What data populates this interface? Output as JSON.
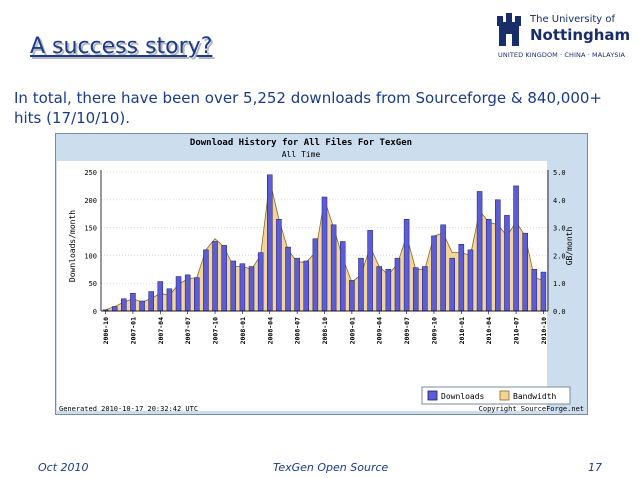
{
  "slide": {
    "title": "A success story?",
    "intro": "In total, there have been over 5,252 downloads from Sourceforge & 840,000+ hits (17/10/10)."
  },
  "logo": {
    "line1": "The University of",
    "line2": "Nottingham",
    "line3": "UNITED KINGDOM · CHINA · MALAYSIA"
  },
  "footer": {
    "date": "Oct 2010",
    "project": "TexGen Open Source",
    "page": "17"
  },
  "chart_data": {
    "type": "bar",
    "title": "Download History for All Files For TexGen",
    "subtitle": "All Time",
    "ylabel": "Downloads/month",
    "y2label": "GB/month",
    "ylim": [
      0,
      250
    ],
    "y2lim": [
      0,
      5.0
    ],
    "yticks": [
      "0",
      "50",
      "100",
      "150",
      "200",
      "250"
    ],
    "y2ticks": [
      "0.0",
      "1.0",
      "2.0",
      "3.0",
      "4.0",
      "5.0"
    ],
    "grid": true,
    "legend_position": "bottom-right",
    "xtick_labels": [
      "2006-10",
      "2007-01",
      "2007-04",
      "2007-07",
      "2007-10",
      "2008-01",
      "2008-04",
      "2008-07",
      "2008-10",
      "2009-01",
      "2009-04",
      "2009-07",
      "2009-10",
      "2010-01",
      "2010-04",
      "2010-07",
      "2010-10"
    ],
    "x": [
      "2006-10",
      "2006-11",
      "2006-12",
      "2007-01",
      "2007-02",
      "2007-03",
      "2007-04",
      "2007-05",
      "2007-06",
      "2007-07",
      "2007-08",
      "2007-09",
      "2007-10",
      "2007-11",
      "2007-12",
      "2008-01",
      "2008-02",
      "2008-03",
      "2008-04",
      "2008-05",
      "2008-06",
      "2008-07",
      "2008-08",
      "2008-09",
      "2008-10",
      "2008-11",
      "2008-12",
      "2009-01",
      "2009-02",
      "2009-03",
      "2009-04",
      "2009-05",
      "2009-06",
      "2009-07",
      "2009-08",
      "2009-09",
      "2009-10",
      "2009-11",
      "2009-12",
      "2010-01",
      "2010-02",
      "2010-03",
      "2010-04",
      "2010-05",
      "2010-06",
      "2010-07",
      "2010-08",
      "2010-09",
      "2010-10"
    ],
    "series": [
      {
        "name": "Downloads",
        "kind": "bar",
        "color": "#5c5cd6",
        "values": [
          2,
          8,
          22,
          32,
          18,
          35,
          53,
          40,
          62,
          65,
          60,
          110,
          125,
          118,
          90,
          85,
          80,
          105,
          245,
          165,
          115,
          95,
          90,
          130,
          205,
          155,
          125,
          55,
          95,
          145,
          80,
          75,
          95,
          165,
          78,
          80,
          135,
          155,
          95,
          120,
          110,
          215,
          165,
          200,
          172,
          225,
          140,
          75,
          70
        ]
      },
      {
        "name": "Bandwidth",
        "kind": "area",
        "color": "#f3d49a",
        "values": [
          0.04,
          0.16,
          0.32,
          0.44,
          0.32,
          0.44,
          0.64,
          0.56,
          0.96,
          1.16,
          1.2,
          2.2,
          2.6,
          2.3,
          1.6,
          1.6,
          1.5,
          2.0,
          4.7,
          3.3,
          2.2,
          1.76,
          1.76,
          2.1,
          4.0,
          3.0,
          1.9,
          1.04,
          1.3,
          2.3,
          1.6,
          1.3,
          1.7,
          2.7,
          1.5,
          1.5,
          2.7,
          2.8,
          2.1,
          2.1,
          2.0,
          3.6,
          3.2,
          3.1,
          2.7,
          3.2,
          2.7,
          1.2,
          1.1
        ]
      }
    ],
    "footer_left": "Generated 2010-10-17 20:32:42 UTC",
    "footer_right": "Copyright SourceForge.net"
  }
}
